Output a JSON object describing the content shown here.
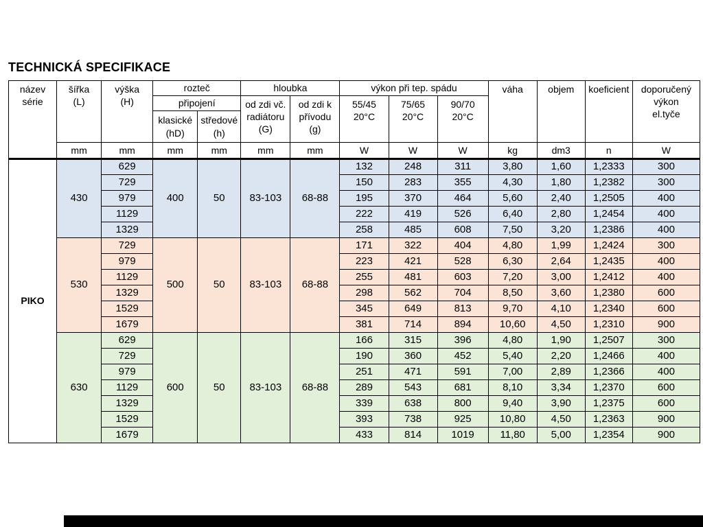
{
  "page": {
    "title": "TECHNICKÁ SPECIFIKACE"
  },
  "table": {
    "series_name": "PIKO",
    "header": {
      "nazev_serie": "název\nsérie",
      "sirka_L": "šířka\n(L)",
      "vyska_H": "výška\n(H)",
      "roztec": "rozteč",
      "pripojeni": "připojení",
      "klasicke_hD": "klasické\n(hD)",
      "stredove_h": "středové\n(h)",
      "hloubka": "hloubka",
      "od_zdi_vc_radiatoru_G": "od zdi vč.\nradiátoru\n(G)",
      "od_zdi_k_privodu_g": "od zdi  k\npřívodu\n(g)",
      "vykon_pri_tep_spadu": "výkon při tep.  spádu",
      "temp_55_45": "55/45\n20°C",
      "temp_75_65": "75/65\n20°C",
      "temp_90_70": "90/70\n20°C",
      "vaha": "váha",
      "objem": "objem",
      "koeficient": "koeficient",
      "doporuceny_vykon": "doporučený\nvýkon\nel.tyče",
      "units": {
        "sirka": "mm",
        "vyska": "mm",
        "klasicke": "mm",
        "stredove": "mm",
        "G": "mm",
        "g": "mm",
        "w1": "W",
        "w2": "W",
        "w3": "W",
        "vaha": "kg",
        "objem": "dm3",
        "koeficient": "n",
        "doporuceny": "W"
      }
    },
    "groups": [
      {
        "width_mm": "430",
        "pitch_classic_mm": "400",
        "pitch_central_mm": "50",
        "depth_G_mm": "83-103",
        "depth_g_mm": "68-88",
        "color": "#dbe5f1",
        "rows": [
          {
            "height_mm": "629",
            "power_55_45": "132",
            "power_75_65": "248",
            "power_90_70": "311",
            "weight_kg": "3,80",
            "volume_dm3": "1,60",
            "coefficient_n": "1,2333",
            "recommended_power_W": "300"
          },
          {
            "height_mm": "729",
            "power_55_45": "150",
            "power_75_65": "283",
            "power_90_70": "355",
            "weight_kg": "4,30",
            "volume_dm3": "1,80",
            "coefficient_n": "1,2382",
            "recommended_power_W": "300"
          },
          {
            "height_mm": "979",
            "power_55_45": "195",
            "power_75_65": "370",
            "power_90_70": "464",
            "weight_kg": "5,60",
            "volume_dm3": "2,40",
            "coefficient_n": "1,2505",
            "recommended_power_W": "400"
          },
          {
            "height_mm": "1129",
            "power_55_45": "222",
            "power_75_65": "419",
            "power_90_70": "526",
            "weight_kg": "6,40",
            "volume_dm3": "2,80",
            "coefficient_n": "1,2454",
            "recommended_power_W": "400"
          },
          {
            "height_mm": "1329",
            "power_55_45": "258",
            "power_75_65": "485",
            "power_90_70": "608",
            "weight_kg": "7,50",
            "volume_dm3": "3,20",
            "coefficient_n": "1,2386",
            "recommended_power_W": "400"
          }
        ]
      },
      {
        "width_mm": "530",
        "pitch_classic_mm": "500",
        "pitch_central_mm": "50",
        "depth_G_mm": "83-103",
        "depth_g_mm": "68-88",
        "color": "#fbe4d5",
        "rows": [
          {
            "height_mm": "729",
            "power_55_45": "171",
            "power_75_65": "322",
            "power_90_70": "404",
            "weight_kg": "4,80",
            "volume_dm3": "1,99",
            "coefficient_n": "1,2424",
            "recommended_power_W": "300"
          },
          {
            "height_mm": "979",
            "power_55_45": "223",
            "power_75_65": "421",
            "power_90_70": "528",
            "weight_kg": "6,30",
            "volume_dm3": "2,64",
            "coefficient_n": "1,2435",
            "recommended_power_W": "400"
          },
          {
            "height_mm": "1129",
            "power_55_45": "255",
            "power_75_65": "481",
            "power_90_70": "603",
            "weight_kg": "7,20",
            "volume_dm3": "3,00",
            "coefficient_n": "1,2412",
            "recommended_power_W": "400"
          },
          {
            "height_mm": "1329",
            "power_55_45": "298",
            "power_75_65": "562",
            "power_90_70": "704",
            "weight_kg": "8,50",
            "volume_dm3": "3,60",
            "coefficient_n": "1,2380",
            "recommended_power_W": "600"
          },
          {
            "height_mm": "1529",
            "power_55_45": "345",
            "power_75_65": "649",
            "power_90_70": "813",
            "weight_kg": "9,70",
            "volume_dm3": "4,10",
            "coefficient_n": "1,2340",
            "recommended_power_W": "600"
          },
          {
            "height_mm": "1679",
            "power_55_45": "381",
            "power_75_65": "714",
            "power_90_70": "894",
            "weight_kg": "10,60",
            "volume_dm3": "4,50",
            "coefficient_n": "1,2310",
            "recommended_power_W": "900"
          }
        ]
      },
      {
        "width_mm": "630",
        "pitch_classic_mm": "600",
        "pitch_central_mm": "50",
        "depth_G_mm": "83-103",
        "depth_g_mm": "68-88",
        "color": "#e2efd9",
        "rows": [
          {
            "height_mm": "629",
            "power_55_45": "166",
            "power_75_65": "315",
            "power_90_70": "396",
            "weight_kg": "4,80",
            "volume_dm3": "1,90",
            "coefficient_n": "1,2507",
            "recommended_power_W": "300"
          },
          {
            "height_mm": "729",
            "power_55_45": "190",
            "power_75_65": "360",
            "power_90_70": "452",
            "weight_kg": "5,40",
            "volume_dm3": "2,20",
            "coefficient_n": "1,2466",
            "recommended_power_W": "400"
          },
          {
            "height_mm": "979",
            "power_55_45": "251",
            "power_75_65": "471",
            "power_90_70": "591",
            "weight_kg": "7,00",
            "volume_dm3": "2,89",
            "coefficient_n": "1,2366",
            "recommended_power_W": "400"
          },
          {
            "height_mm": "1129",
            "power_55_45": "289",
            "power_75_65": "543",
            "power_90_70": "681",
            "weight_kg": "8,10",
            "volume_dm3": "3,34",
            "coefficient_n": "1,2370",
            "recommended_power_W": "600"
          },
          {
            "height_mm": "1329",
            "power_55_45": "339",
            "power_75_65": "638",
            "power_90_70": "800",
            "weight_kg": "9,40",
            "volume_dm3": "3,90",
            "coefficient_n": "1,2375",
            "recommended_power_W": "600"
          },
          {
            "height_mm": "1529",
            "power_55_45": "393",
            "power_75_65": "738",
            "power_90_70": "925",
            "weight_kg": "10,80",
            "volume_dm3": "4,50",
            "coefficient_n": "1,2363",
            "recommended_power_W": "900"
          },
          {
            "height_mm": "1679",
            "power_55_45": "433",
            "power_75_65": "814",
            "power_90_70": "1019",
            "weight_kg": "11,80",
            "volume_dm3": "5,00",
            "coefficient_n": "1,2354",
            "recommended_power_W": "900"
          }
        ]
      }
    ]
  },
  "bottom_bar": {
    "color": "#000000"
  }
}
